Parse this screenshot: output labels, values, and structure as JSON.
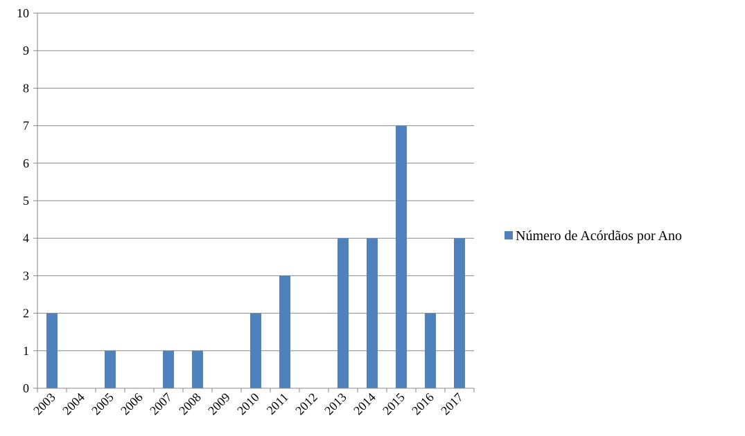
{
  "chart_data": {
    "type": "bar",
    "categories": [
      "2003",
      "2004",
      "2005",
      "2006",
      "2007",
      "2008",
      "2009",
      "2010",
      "2011",
      "2012",
      "2013",
      "2014",
      "2015",
      "2016",
      "2017"
    ],
    "series": [
      {
        "name": "Número de Acórdãos por Ano",
        "values": [
          2,
          0,
          1,
          0,
          1,
          1,
          0,
          2,
          3,
          0,
          4,
          4,
          7,
          2,
          4
        ],
        "color": "#4f81bd"
      }
    ],
    "ylim": [
      0,
      10
    ],
    "yticks": [
      0,
      1,
      2,
      3,
      4,
      5,
      6,
      7,
      8,
      9,
      10
    ],
    "grid": true,
    "legend_position": "right"
  }
}
